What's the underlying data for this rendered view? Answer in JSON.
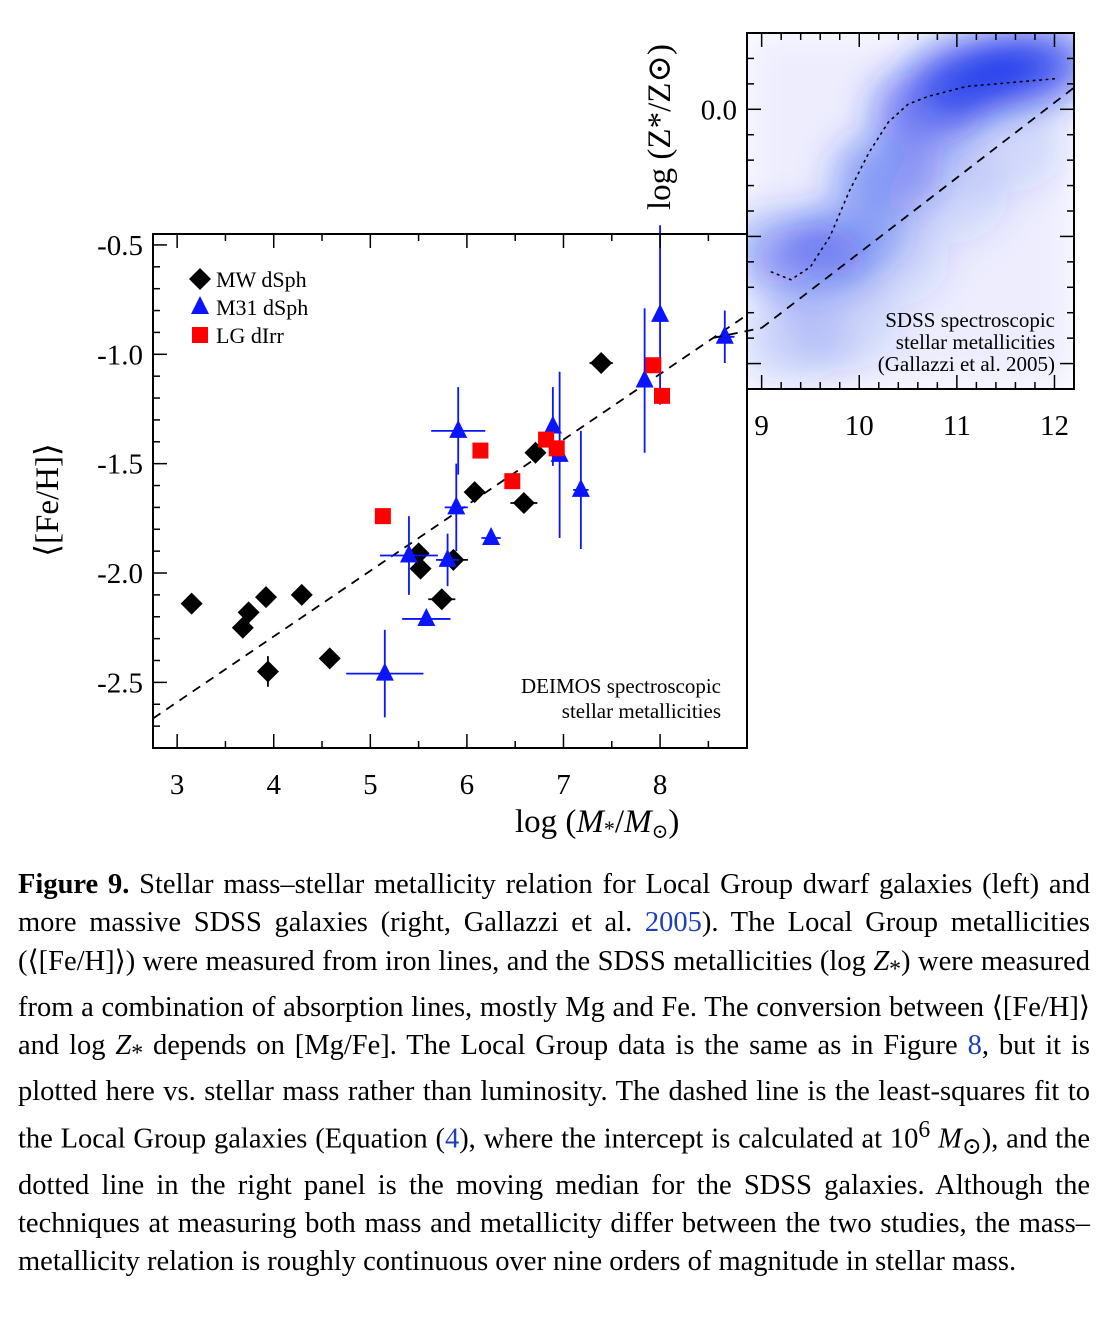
{
  "colors": {
    "mw": "#000000",
    "m31": "#0a14ff",
    "lg": "#ff0000",
    "sdss_density": "#0f2bea",
    "caption_link": "#1f3fb5"
  },
  "chart_data": [
    {
      "type": "scatter",
      "panel": "left",
      "xlabel": "log (M*/M⊙)",
      "ylabel": "⟨[Fe/H]⟩",
      "xlim": [
        2.75,
        8.9
      ],
      "ylim": [
        -2.8,
        -0.45
      ],
      "xticks": [
        3,
        4,
        5,
        6,
        7,
        8
      ],
      "yticks": [
        -2.5,
        -2.0,
        -1.5,
        -1.0,
        -0.5
      ],
      "ytick_labels": [
        "-2.5",
        "-2.0",
        "-1.5",
        "-1.0",
        "-0.5"
      ],
      "legend_position": "top-left",
      "note": [
        "DEIMOS spectroscopic",
        "stellar metallicities"
      ],
      "fit_line": {
        "style": "dashed",
        "slope": 0.3,
        "intercept_at_6": -1.69
      },
      "series": [
        {
          "name": "MW dSph",
          "marker": "diamond",
          "points": [
            {
              "x": 3.15,
              "y": -2.14,
              "xerr": 0,
              "yerr": 0
            },
            {
              "x": 3.68,
              "y": -2.25,
              "xerr": 0,
              "yerr": 0
            },
            {
              "x": 3.74,
              "y": -2.18,
              "xerr": 0,
              "yerr": 0
            },
            {
              "x": 3.92,
              "y": -2.11,
              "xerr": 0,
              "yerr": 0
            },
            {
              "x": 3.94,
              "y": -2.45,
              "xerr": 0.1,
              "yerr": 0.07
            },
            {
              "x": 4.29,
              "y": -2.1,
              "xerr": 0,
              "yerr": 0
            },
            {
              "x": 4.58,
              "y": -2.39,
              "xerr": 0,
              "yerr": 0
            },
            {
              "x": 5.5,
              "y": -1.91,
              "xerr": 0,
              "yerr": 0
            },
            {
              "x": 5.52,
              "y": -1.98,
              "xerr": 0,
              "yerr": 0
            },
            {
              "x": 5.74,
              "y": -2.12,
              "xerr": 0.14,
              "yerr": 0
            },
            {
              "x": 5.86,
              "y": -1.94,
              "xerr": 0.15,
              "yerr": 0
            },
            {
              "x": 6.08,
              "y": -1.63,
              "xerr": 0,
              "yerr": 0
            },
            {
              "x": 6.59,
              "y": -1.68,
              "xerr": 0.14,
              "yerr": 0
            },
            {
              "x": 6.71,
              "y": -1.45,
              "xerr": 0,
              "yerr": 0
            },
            {
              "x": 7.39,
              "y": -1.04,
              "xerr": 0.12,
              "yerr": 0
            }
          ]
        },
        {
          "name": "M31 dSph",
          "marker": "triangle",
          "points": [
            {
              "x": 5.15,
              "y": -2.46,
              "xerr": 0.4,
              "yerr": 0.2
            },
            {
              "x": 5.4,
              "y": -1.92,
              "xerr": 0.3,
              "yerr": 0.18
            },
            {
              "x": 5.58,
              "y": -2.21,
              "xerr": 0.25,
              "yerr": 0
            },
            {
              "x": 5.8,
              "y": -1.94,
              "xerr": 0.12,
              "yerr": 0.12
            },
            {
              "x": 5.89,
              "y": -1.7,
              "xerr": 0.12,
              "yerr": 0.2
            },
            {
              "x": 5.91,
              "y": -1.35,
              "xerr": 0.28,
              "yerr": 0.2
            },
            {
              "x": 6.25,
              "y": -1.84,
              "xerr": 0.1,
              "yerr": 0
            },
            {
              "x": 6.89,
              "y": -1.33,
              "xerr": 0,
              "yerr": 0.18
            },
            {
              "x": 6.96,
              "y": -1.46,
              "xerr": 0,
              "yerr": 0.38
            },
            {
              "x": 7.18,
              "y": -1.62,
              "xerr": 0.08,
              "yerr": 0.27
            },
            {
              "x": 7.84,
              "y": -1.12,
              "xerr": 0,
              "yerr": 0.33
            },
            {
              "x": 8.0,
              "y": -0.82,
              "xerr": 0,
              "yerr": 0.41
            },
            {
              "x": 8.67,
              "y": -0.92,
              "xerr": 0.1,
              "yerr": 0.12
            }
          ]
        },
        {
          "name": "LG dIrr",
          "marker": "square",
          "points": [
            {
              "x": 5.13,
              "y": -1.74,
              "xerr": 0.08,
              "yerr": 0.02
            },
            {
              "x": 6.14,
              "y": -1.44,
              "xerr": 0,
              "yerr": 0
            },
            {
              "x": 6.47,
              "y": -1.58,
              "xerr": 0,
              "yerr": 0
            },
            {
              "x": 6.82,
              "y": -1.39,
              "xerr": 0.04,
              "yerr": 0
            },
            {
              "x": 6.93,
              "y": -1.43,
              "xerr": 0,
              "yerr": 0
            },
            {
              "x": 7.93,
              "y": -1.05,
              "xerr": 0,
              "yerr": 0
            },
            {
              "x": 8.02,
              "y": -1.19,
              "xerr": 0,
              "yerr": 0
            }
          ]
        }
      ]
    },
    {
      "type": "heatmap",
      "panel": "right",
      "ylabel": "log (Z*/Z⊙)",
      "xlim": [
        8.85,
        12.2
      ],
      "ylim": [
        -1.1,
        0.3
      ],
      "xticks": [
        9,
        10,
        11,
        12
      ],
      "yticks": [
        0.0
      ],
      "ytick_labels": [
        "0.0"
      ],
      "note": [
        "SDSS spectroscopic",
        "stellar metallicities",
        "(Gallazzi et al. 2005)"
      ],
      "density_ridge": [
        {
          "x": 9.1,
          "y": -0.55,
          "w": 0.25
        },
        {
          "x": 9.5,
          "y": -0.6,
          "w": 0.4
        },
        {
          "x": 9.9,
          "y": -0.5,
          "w": 0.45
        },
        {
          "x": 10.3,
          "y": -0.25,
          "w": 0.6
        },
        {
          "x": 10.7,
          "y": 0.0,
          "w": 0.85
        },
        {
          "x": 11.1,
          "y": 0.12,
          "w": 1.0
        },
        {
          "x": 11.5,
          "y": 0.16,
          "w": 1.0
        },
        {
          "x": 11.9,
          "y": 0.18,
          "w": 0.8
        }
      ],
      "moving_median": {
        "style": "dotted",
        "x": [
          9.1,
          9.3,
          9.5,
          9.7,
          9.9,
          10.1,
          10.3,
          10.5,
          10.7,
          10.9,
          11.1,
          11.4,
          11.7,
          12.0
        ],
        "y": [
          -0.64,
          -0.67,
          -0.62,
          -0.5,
          -0.32,
          -0.17,
          -0.05,
          0.02,
          0.05,
          0.07,
          0.09,
          0.1,
          0.11,
          0.12
        ]
      },
      "fit_line": {
        "style": "dashed",
        "x": [
          9.0,
          12.25
        ],
        "y": [
          -0.86,
          0.1
        ]
      }
    }
  ],
  "caption": {
    "label": "Figure 9.",
    "t1": " Stellar mass–stellar metallicity relation for Local Group dwarf galaxies (left) and more massive SDSS galaxies (right, Gallazzi et al. ",
    "ref1": "2005",
    "t2": "). The Local Group metallicities (⟨[Fe/H]⟩) were measured from iron lines, and the SDSS metallicities (log ",
    "z1": "Z",
    "z1sub": "*",
    "t3": ") were measured from a combination of absorption lines, mostly Mg and Fe. The conversion between ⟨[Fe/H]⟩ and log ",
    "z2": "Z",
    "z2sub": "*",
    "t4": " depends on [Mg/Fe]. The Local Group data is the same as in Figure ",
    "ref2": "8",
    "t5": ", but it is plotted here vs. stellar mass rather than luminosity. The dashed line is the least-squares fit to the Local Group galaxies (Equation (",
    "ref3": "4",
    "t6": "), where the intercept is calculated at 10",
    "exp": "6",
    "msun": " M",
    "msunsub": "⊙",
    "t7": "), and the dotted line in the right panel is the moving median for the SDSS galaxies. Although the techniques at measuring both mass and metallicity differ between the two studies, the mass–metallicity relation is roughly continuous over nine orders of magnitude in stellar mass."
  }
}
